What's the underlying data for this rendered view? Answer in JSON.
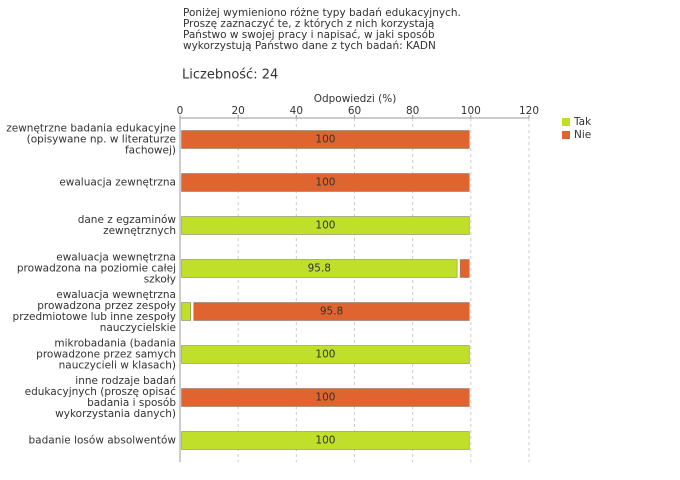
{
  "chart_data": {
    "type": "stacked_barh",
    "title_lines": [
      "Poniżej wymieniono różne typy badań edukacyjnych.",
      "Proszę zaznaczyć te, z których z nich korzystają",
      "Państwo w swojej pracy i napisać, w jaki sposób",
      "wykorzystują Państwo dane z tych badań:  KADN"
    ],
    "subtitle": "Liczebność: 24",
    "xlabel": "Odpowiedzi (%)",
    "xlim": [
      0,
      120
    ],
    "xticks": [
      0,
      20,
      40,
      60,
      80,
      100,
      120
    ],
    "grid": true,
    "legend": "right",
    "categories": [
      "zewnętrzne badania edukacyjne\n(opisywane np. w literaturze\nfachowej)",
      "ewaluacja zewnętrzna",
      "dane z egzaminów\nzewnętrznych",
      "ewaluacja wewnętrzna\nprowadzona na poziomie całej\nszkoły",
      "ewaluacja wewnętrzna\nprowadzona przez zespoły\nprzedmiotowe lub inne zespoły\nnauczycielskie",
      "mikrobadania (badania\nprowadzone przez samych\nnauczycieli w klasach)",
      "inne rodzaje badań\nedukacyjnych (proszę opisać\nbadania i sposób\nwykorzystania danych)",
      "badanie losów absolwentów"
    ],
    "series": [
      {
        "name": "Tak",
        "color": "#bfdf2a",
        "values": [
          0,
          0,
          100,
          95.8,
          4.2,
          100,
          0,
          100
        ]
      },
      {
        "name": "Nie",
        "color": "#e06430",
        "values": [
          100,
          100,
          0,
          4.2,
          95.8,
          0,
          100,
          0
        ]
      }
    ]
  }
}
